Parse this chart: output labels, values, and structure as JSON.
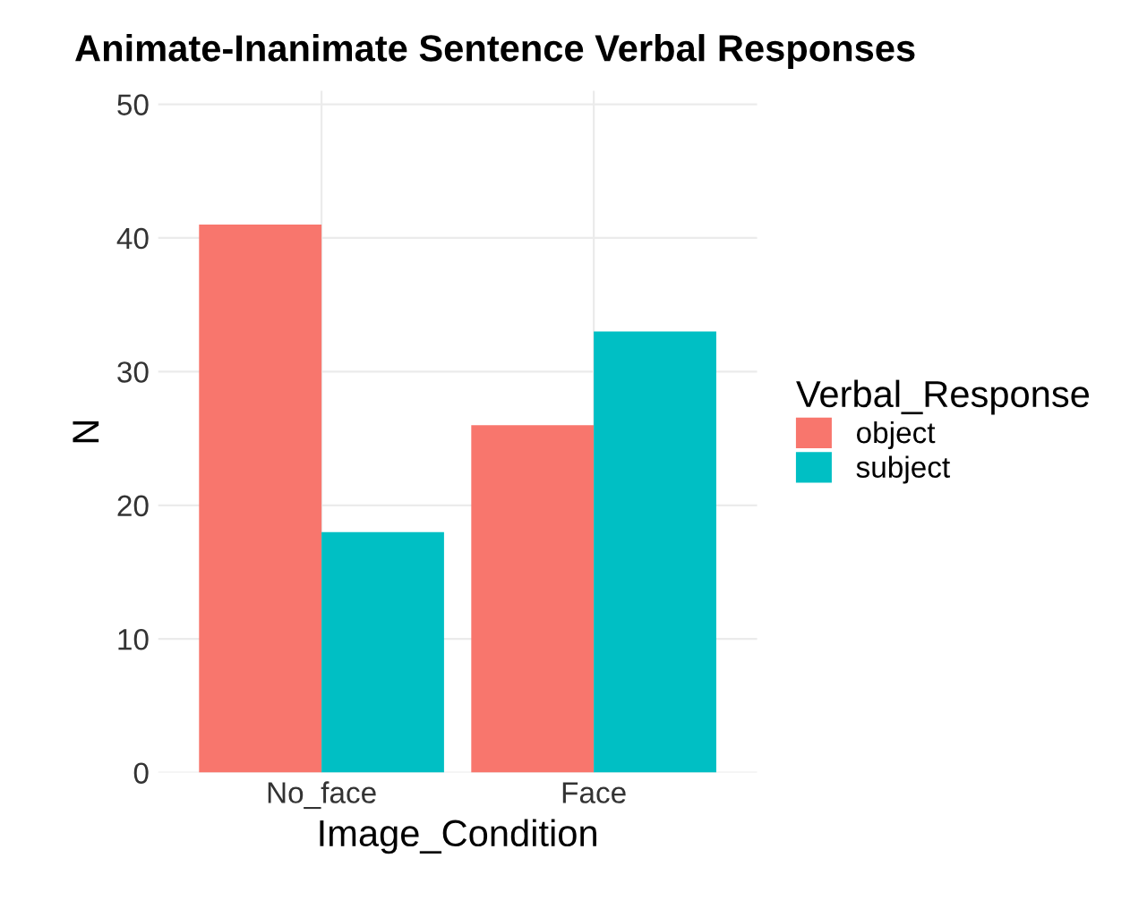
{
  "chart_data": {
    "type": "bar",
    "title": "Animate-Inanimate Sentence Verbal Responses",
    "xlabel": "Image_Condition",
    "ylabel": "N",
    "legend_title": "Verbal_Response",
    "categories": [
      "No_face",
      "Face"
    ],
    "series": [
      {
        "name": "object",
        "color": "#f8766d",
        "values": [
          41,
          26
        ]
      },
      {
        "name": "subject",
        "color": "#00bfc4",
        "values": [
          18,
          33
        ]
      }
    ],
    "ylim": [
      0,
      51
    ],
    "yticks": [
      0,
      10,
      20,
      30,
      40,
      50
    ],
    "grid": true,
    "legend": "right"
  }
}
